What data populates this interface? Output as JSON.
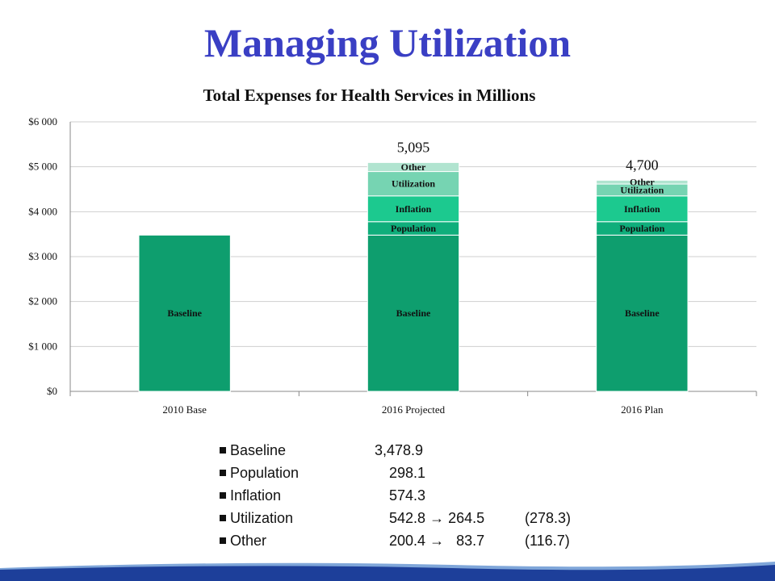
{
  "slide_title": "Managing Utilization",
  "chart_data": {
    "type": "bar",
    "stacked": true,
    "title": "Total Expenses for Health Services in Millions",
    "categories": [
      "2010 Base",
      "2016 Projected",
      "2016 Plan"
    ],
    "y_tick_labels": [
      "$0",
      "$1 000",
      "$2 000",
      "$3 000",
      "$4 000",
      "$5 000",
      "$6 000"
    ],
    "ylim": [
      0,
      6000
    ],
    "grid": true,
    "series": [
      {
        "name": "Baseline",
        "color": "#0e9e6e",
        "values": [
          3478.9,
          3478.9,
          3478.9
        ]
      },
      {
        "name": "Population",
        "color": "#0fae7b",
        "values": [
          0,
          298.1,
          298.1
        ]
      },
      {
        "name": "Inflation",
        "color": "#1cc98f",
        "values": [
          0,
          574.3,
          574.3
        ]
      },
      {
        "name": "Utilization",
        "color": "#76d4b2",
        "values": [
          0,
          542.8,
          264.5
        ]
      },
      {
        "name": "Other",
        "color": "#b1e4d0",
        "values": [
          0,
          200.4,
          83.7
        ]
      }
    ],
    "segment_labels": [
      [
        "Baseline",
        "",
        "",
        "",
        ""
      ],
      [
        "Baseline",
        "Population",
        "Inflation",
        "Utilization",
        "Other"
      ],
      [
        "Baseline",
        "Population",
        "Inflation",
        "Utilization",
        "Other"
      ]
    ],
    "totals": [
      "",
      "5,095",
      "4,700"
    ]
  },
  "legend_list": [
    {
      "name": "Baseline",
      "value": "3,478.9",
      "change": "",
      "reduction": ""
    },
    {
      "name": "Population",
      "value": "298.1",
      "change": "",
      "reduction": ""
    },
    {
      "name": "Inflation",
      "value": "574.3",
      "change": "",
      "reduction": ""
    },
    {
      "name": "Utilization",
      "value": "542.8",
      "change": "→ 264.5",
      "reduction": "(278.3)"
    },
    {
      "name": "Other",
      "value": "200.4",
      "change": "→   83.7",
      "reduction": "(116.7)"
    }
  ]
}
